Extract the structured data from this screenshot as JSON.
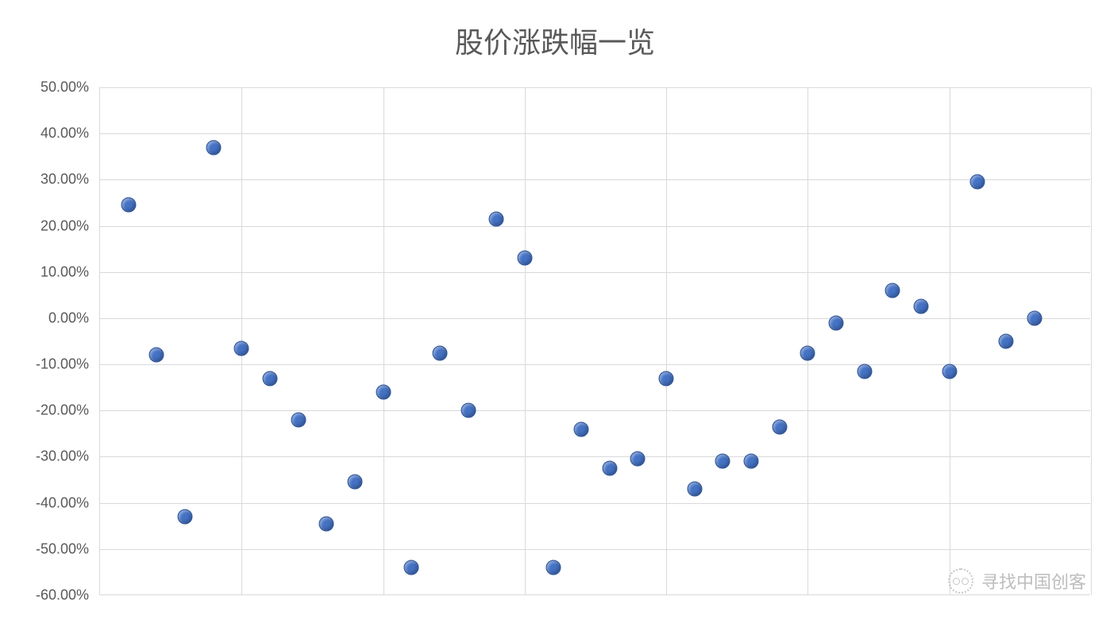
{
  "chart": {
    "title": "股价涨跌幅一览",
    "title_fontsize": 36,
    "title_color": "#595959",
    "type": "scatter",
    "background_color": "#ffffff",
    "grid_color": "#d9d9d9",
    "axis_label_color": "#595959",
    "axis_label_fontsize": 18,
    "marker_color": "#4472c4",
    "marker_border": "#2e5496",
    "marker_size": 19,
    "ylim": [
      -60,
      50
    ],
    "ytick_step": 10,
    "ytick_labels": [
      "50.00%",
      "40.00%",
      "30.00%",
      "20.00%",
      "10.00%",
      "0.00%",
      "-10.00%",
      "-20.00%",
      "-30.00%",
      "-40.00%",
      "-50.00%",
      "-60.00%"
    ],
    "x_range": [
      0,
      35
    ],
    "x_gridlines": [
      0,
      5,
      10,
      15,
      20,
      25,
      30,
      35
    ],
    "data_points": [
      {
        "x": 1,
        "y": 24.5
      },
      {
        "x": 2,
        "y": -8.0
      },
      {
        "x": 3,
        "y": -43.0
      },
      {
        "x": 4,
        "y": 37.0
      },
      {
        "x": 5,
        "y": -6.5
      },
      {
        "x": 6,
        "y": -13.0
      },
      {
        "x": 7,
        "y": -22.0
      },
      {
        "x": 8,
        "y": -44.5
      },
      {
        "x": 9,
        "y": -35.5
      },
      {
        "x": 10,
        "y": -16.0
      },
      {
        "x": 11,
        "y": -54.0
      },
      {
        "x": 12,
        "y": -7.5
      },
      {
        "x": 13,
        "y": -20.0
      },
      {
        "x": 14,
        "y": 21.5
      },
      {
        "x": 15,
        "y": 13.0
      },
      {
        "x": 16,
        "y": -54.0
      },
      {
        "x": 17,
        "y": -24.0
      },
      {
        "x": 18,
        "y": -32.5
      },
      {
        "x": 19,
        "y": -30.5
      },
      {
        "x": 20,
        "y": -13.0
      },
      {
        "x": 21,
        "y": -37.0
      },
      {
        "x": 22,
        "y": -31.0
      },
      {
        "x": 23,
        "y": -31.0
      },
      {
        "x": 24,
        "y": -23.5
      },
      {
        "x": 25,
        "y": -7.5
      },
      {
        "x": 26,
        "y": -1.0
      },
      {
        "x": 27,
        "y": -11.5
      },
      {
        "x": 28,
        "y": 6.0
      },
      {
        "x": 29,
        "y": 2.5
      },
      {
        "x": 30,
        "y": -11.5
      },
      {
        "x": 31,
        "y": 29.5
      },
      {
        "x": 32,
        "y": -5.0
      },
      {
        "x": 33,
        "y": 0.0
      }
    ]
  },
  "watermark": {
    "text": "寻找中国创客"
  }
}
